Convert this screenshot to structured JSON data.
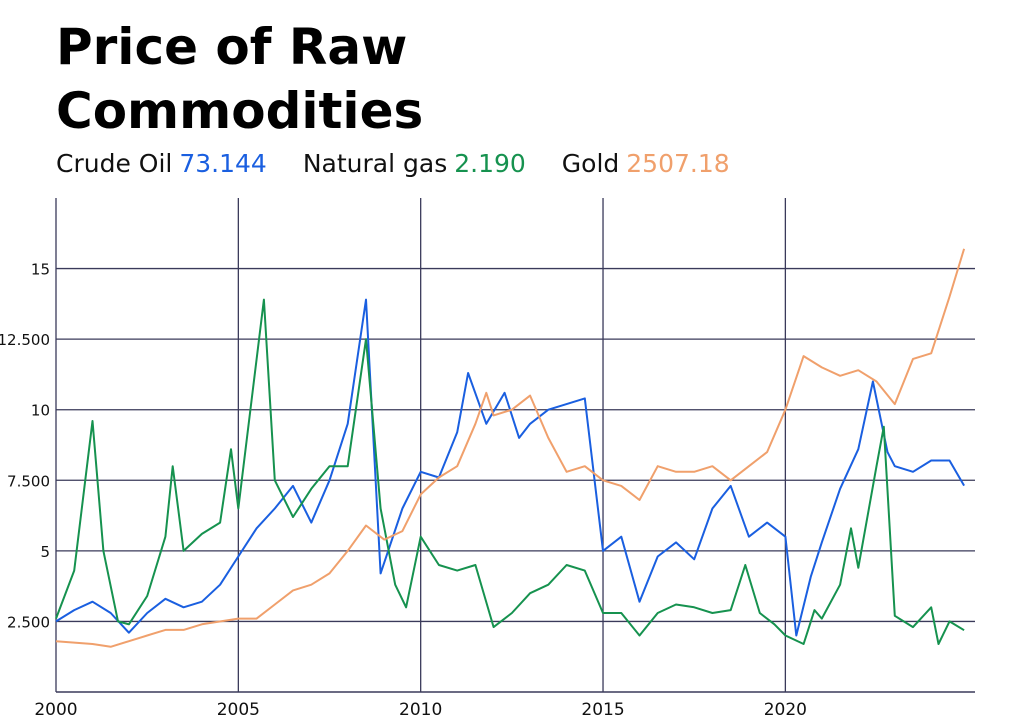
{
  "chart_data": {
    "type": "line",
    "title_lines": [
      "Price of Raw",
      "Commodities"
    ],
    "xlim": [
      2000,
      2025.2
    ],
    "ylim": [
      0,
      17.5
    ],
    "xticks": [
      2000,
      2005,
      2010,
      2015,
      2020
    ],
    "yticks": [
      {
        "value": 2.5,
        "label": "2.500"
      },
      5,
      {
        "value": 7.5,
        "label": "7.500"
      },
      10,
      {
        "value": 12.5,
        "label": "12.500"
      },
      15
    ],
    "grid": true,
    "series": [
      {
        "name": "Crude Oil",
        "last_label": "73.144",
        "color": "#1a5fe0",
        "x": [
          2000,
          2000.5,
          2001,
          2001.5,
          2002,
          2002.5,
          2003,
          2003.5,
          2004,
          2004.5,
          2005,
          2005.5,
          2006,
          2006.5,
          2007,
          2007.5,
          2008,
          2008.5,
          2008.9,
          2009.5,
          2010,
          2010.5,
          2011,
          2011.3,
          2011.8,
          2012.3,
          2012.7,
          2013,
          2013.5,
          2014,
          2014.5,
          2015,
          2015.5,
          2016,
          2016.5,
          2017,
          2017.5,
          2018,
          2018.5,
          2019,
          2019.5,
          2020,
          2020.3,
          2020.7,
          2021,
          2021.5,
          2022,
          2022.4,
          2022.8,
          2023,
          2023.5,
          2024,
          2024.5,
          2024.9
        ],
        "values": [
          2.5,
          2.9,
          3.2,
          2.8,
          2.1,
          2.8,
          3.3,
          3.0,
          3.2,
          3.8,
          4.8,
          5.8,
          6.5,
          7.3,
          6.0,
          7.5,
          9.5,
          13.9,
          4.2,
          6.5,
          7.8,
          7.6,
          9.2,
          11.3,
          9.5,
          10.6,
          9.0,
          9.5,
          10.0,
          10.2,
          10.4,
          5.0,
          5.5,
          3.2,
          4.8,
          5.3,
          4.7,
          6.5,
          7.3,
          5.5,
          6.0,
          5.5,
          2.0,
          4.1,
          5.3,
          7.2,
          8.6,
          11.0,
          8.5,
          8.0,
          7.8,
          8.2,
          8.2,
          7.31
        ]
      },
      {
        "name": "Natural gas",
        "last_label": "2.190",
        "color": "#16924f",
        "x": [
          2000,
          2000.5,
          2001,
          2001.3,
          2001.7,
          2002,
          2002.5,
          2003,
          2003.2,
          2003.5,
          2004,
          2004.5,
          2004.8,
          2005,
          2005.7,
          2006,
          2006.5,
          2007,
          2007.5,
          2008,
          2008.5,
          2008.9,
          2009.3,
          2009.6,
          2010,
          2010.5,
          2011,
          2011.5,
          2012,
          2012.5,
          2013,
          2013.5,
          2014,
          2014.5,
          2015,
          2015.5,
          2016,
          2016.5,
          2017,
          2017.5,
          2018,
          2018.5,
          2018.9,
          2019.3,
          2019.7,
          2020,
          2020.5,
          2020.8,
          2021,
          2021.5,
          2021.8,
          2022,
          2022.5,
          2022.7,
          2023,
          2023.5,
          2024,
          2024.2,
          2024.5,
          2024.9
        ],
        "values": [
          2.6,
          4.3,
          9.6,
          5.0,
          2.5,
          2.4,
          3.4,
          5.5,
          8.0,
          5.0,
          5.6,
          6.0,
          8.6,
          6.5,
          13.9,
          7.5,
          6.2,
          7.2,
          8.0,
          8.0,
          12.5,
          6.5,
          3.8,
          3.0,
          5.5,
          4.5,
          4.3,
          4.5,
          2.3,
          2.8,
          3.5,
          3.8,
          4.5,
          4.3,
          2.8,
          2.8,
          2.0,
          2.8,
          3.1,
          3.0,
          2.8,
          2.9,
          4.5,
          2.8,
          2.4,
          2.0,
          1.7,
          2.9,
          2.6,
          3.8,
          5.8,
          4.4,
          8.0,
          9.4,
          2.7,
          2.3,
          3.0,
          1.7,
          2.5,
          2.19
        ]
      },
      {
        "name": "Gold",
        "last_label": "2507.18",
        "color": "#f0a06c",
        "x": [
          2000,
          2001,
          2001.5,
          2002,
          2002.5,
          2003,
          2003.5,
          2004,
          2005,
          2005.5,
          2006,
          2006.5,
          2007,
          2007.5,
          2008,
          2008.5,
          2009,
          2009.5,
          2010,
          2010.5,
          2011,
          2011.5,
          2011.8,
          2012,
          2012.5,
          2013,
          2013.5,
          2014,
          2014.5,
          2015,
          2015.5,
          2016,
          2016.5,
          2017,
          2017.5,
          2018,
          2018.5,
          2019,
          2019.5,
          2020,
          2020.5,
          2021,
          2021.5,
          2022,
          2022.5,
          2023,
          2023.5,
          2024,
          2024.5,
          2024.9
        ],
        "values": [
          1.8,
          1.7,
          1.6,
          1.8,
          2.0,
          2.2,
          2.2,
          2.4,
          2.6,
          2.6,
          3.1,
          3.6,
          3.8,
          4.2,
          5.0,
          5.9,
          5.4,
          5.7,
          7.0,
          7.6,
          8.0,
          9.5,
          10.6,
          9.8,
          10.0,
          10.5,
          9.0,
          7.8,
          8.0,
          7.5,
          7.3,
          6.8,
          8.0,
          7.8,
          7.8,
          8.0,
          7.5,
          8.0,
          8.5,
          10.0,
          11.9,
          11.5,
          11.2,
          11.4,
          11.0,
          10.2,
          11.8,
          12.0,
          14.0,
          15.7
        ]
      }
    ]
  }
}
